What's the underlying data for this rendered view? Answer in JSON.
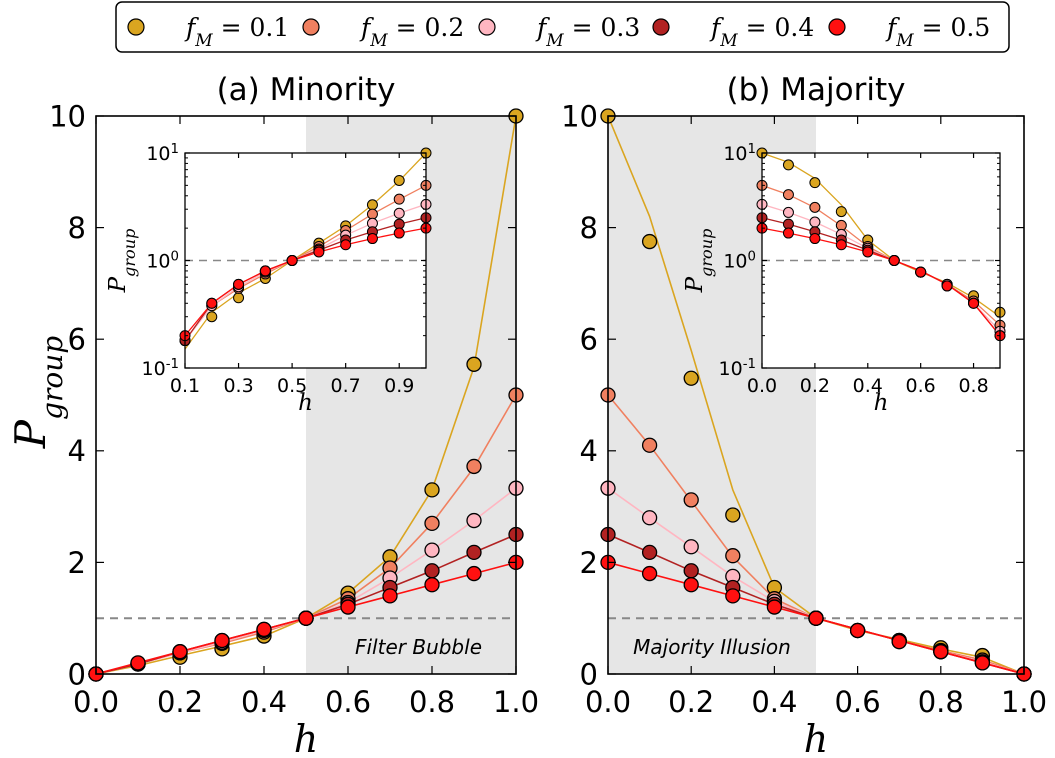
{
  "legend": {
    "location": "top-center, outside panels",
    "entries": [
      {
        "label": "f_M = 0.1",
        "color": "#DAA520"
      },
      {
        "label": "f_M = 0.2",
        "color": "#F08060"
      },
      {
        "label": "f_M = 0.3",
        "color": "#FFB6C1"
      },
      {
        "label": "f_M = 0.4",
        "color": "#B22222"
      },
      {
        "label": "f_M = 0.5",
        "color": "#FF1010"
      }
    ]
  },
  "shared_axes": {
    "xlabel": "h",
    "ylabel": "P_group"
  },
  "chart_data": [
    {
      "type": "line",
      "title": "(a) Minority",
      "xlabel": "h",
      "ylabel": "P_group",
      "xlim": [
        0.0,
        1.0
      ],
      "ylim": [
        0,
        10
      ],
      "xticks": [
        "0.0",
        "0.2",
        "0.4",
        "0.6",
        "0.8",
        "1.0"
      ],
      "yticks": [
        "0",
        "2",
        "4",
        "6",
        "8",
        "10"
      ],
      "reference_line_y": 1,
      "shaded_region": {
        "x": [
          0.5,
          1.0
        ],
        "label": "Filter Bubble"
      },
      "markers": true,
      "x": [
        0.0,
        0.1,
        0.2,
        0.3,
        0.4,
        0.5,
        0.6,
        0.7,
        0.8,
        0.9,
        1.0
      ],
      "series": [
        {
          "name": "f_M = 0.1",
          "line": [
            0,
            0.15,
            0.33,
            0.5,
            0.68,
            1.0,
            1.45,
            2.1,
            3.3,
            5.5,
            10.0
          ],
          "points": [
            0,
            0.18,
            0.3,
            0.45,
            0.68,
            1.0,
            1.45,
            2.1,
            3.3,
            5.55,
            10.0
          ]
        },
        {
          "name": "f_M = 0.2",
          "line": [
            0,
            0.18,
            0.38,
            0.55,
            0.75,
            1.0,
            1.35,
            1.9,
            2.7,
            3.7,
            5.0
          ],
          "points": [
            0,
            0.18,
            0.38,
            0.55,
            0.75,
            1.0,
            1.35,
            1.9,
            2.7,
            3.72,
            5.0
          ]
        },
        {
          "name": "f_M = 0.3",
          "line": [
            0,
            0.18,
            0.38,
            0.57,
            0.78,
            1.0,
            1.28,
            1.72,
            2.22,
            2.75,
            3.33
          ],
          "points": [
            0,
            0.18,
            0.38,
            0.57,
            0.78,
            1.0,
            1.28,
            1.72,
            2.22,
            2.75,
            3.33
          ]
        },
        {
          "name": "f_M = 0.4",
          "line": [
            0,
            0.18,
            0.4,
            0.6,
            0.8,
            1.0,
            1.25,
            1.55,
            1.85,
            2.18,
            2.5
          ],
          "points": [
            0,
            0.18,
            0.4,
            0.6,
            0.8,
            1.0,
            1.25,
            1.55,
            1.85,
            2.18,
            2.5
          ]
        },
        {
          "name": "f_M = 0.5",
          "line": [
            0,
            0.2,
            0.4,
            0.6,
            0.8,
            1.0,
            1.2,
            1.4,
            1.6,
            1.8,
            2.0
          ],
          "points": [
            0,
            0.2,
            0.4,
            0.6,
            0.8,
            1.0,
            1.2,
            1.4,
            1.6,
            1.8,
            2.0
          ]
        }
      ],
      "inset": {
        "type": "line",
        "yscale": "log",
        "xlabel": "h",
        "ylabel": "P_group",
        "xlim": [
          0.1,
          1.0
        ],
        "ylim": [
          0.1,
          10
        ],
        "xticks": [
          "0.1",
          "0.3",
          "0.5",
          "0.7",
          "0.9"
        ],
        "yticks": [
          "10^-1",
          "10^0",
          "10^1"
        ],
        "reference_line_y": 1,
        "markers": true,
        "x": [
          0.1,
          0.2,
          0.3,
          0.4,
          0.5,
          0.6,
          0.7,
          0.8,
          0.9,
          1.0
        ],
        "series": [
          {
            "name": "f_M = 0.1",
            "line": [
              0.15,
              0.33,
              0.5,
              0.68,
              1.0,
              1.45,
              2.1,
              3.3,
              5.5,
              10.0
            ],
            "points": [
              0.18,
              0.3,
              0.45,
              0.68,
              1.0,
              1.45,
              2.1,
              3.3,
              5.55,
              10.0
            ]
          },
          {
            "name": "f_M = 0.2",
            "line": [
              0.18,
              0.38,
              0.55,
              0.75,
              1.0,
              1.35,
              1.9,
              2.7,
              3.7,
              5.0
            ],
            "points": [
              0.18,
              0.38,
              0.55,
              0.75,
              1.0,
              1.35,
              1.9,
              2.7,
              3.72,
              5.0
            ]
          },
          {
            "name": "f_M = 0.3",
            "line": [
              0.18,
              0.38,
              0.57,
              0.78,
              1.0,
              1.28,
              1.72,
              2.22,
              2.75,
              3.33
            ],
            "points": [
              0.18,
              0.38,
              0.57,
              0.78,
              1.0,
              1.28,
              1.72,
              2.22,
              2.75,
              3.33
            ]
          },
          {
            "name": "f_M = 0.4",
            "line": [
              0.18,
              0.4,
              0.6,
              0.8,
              1.0,
              1.25,
              1.55,
              1.85,
              2.18,
              2.5
            ],
            "points": [
              0.18,
              0.4,
              0.6,
              0.8,
              1.0,
              1.25,
              1.55,
              1.85,
              2.18,
              2.5
            ]
          },
          {
            "name": "f_M = 0.5",
            "line": [
              0.2,
              0.4,
              0.6,
              0.8,
              1.0,
              1.2,
              1.4,
              1.6,
              1.8,
              2.0
            ],
            "points": [
              0.2,
              0.4,
              0.6,
              0.8,
              1.0,
              1.2,
              1.4,
              1.6,
              1.8,
              2.0
            ]
          }
        ]
      }
    },
    {
      "type": "line",
      "title": "(b) Majority",
      "xlabel": "h",
      "ylabel": "",
      "xlim": [
        0.0,
        1.0
      ],
      "ylim": [
        0,
        10
      ],
      "xticks": [
        "0.0",
        "0.2",
        "0.4",
        "0.6",
        "0.8",
        "1.0"
      ],
      "yticks": [
        "0",
        "2",
        "4",
        "6",
        "8",
        "10"
      ],
      "reference_line_y": 1,
      "shaded_region": {
        "x": [
          0.0,
          0.5
        ],
        "label": "Majority Illusion"
      },
      "markers": true,
      "x": [
        0.0,
        0.1,
        0.2,
        0.3,
        0.4,
        0.5,
        0.6,
        0.7,
        0.8,
        0.9,
        1.0
      ],
      "series": [
        {
          "name": "f_M = 0.1",
          "line": [
            10.0,
            8.2,
            5.8,
            3.3,
            1.55,
            1.0,
            0.78,
            0.62,
            0.45,
            0.3,
            0.0
          ],
          "points": [
            10.0,
            7.75,
            5.3,
            2.85,
            1.55,
            1.0,
            0.78,
            0.6,
            0.47,
            0.33,
            0.0
          ]
        },
        {
          "name": "f_M = 0.2",
          "line": [
            5.0,
            4.1,
            3.1,
            2.1,
            1.35,
            1.0,
            0.8,
            0.6,
            0.42,
            0.25,
            0.0
          ],
          "points": [
            5.0,
            4.1,
            3.12,
            2.12,
            1.35,
            1.0,
            0.78,
            0.6,
            0.42,
            0.25,
            0.0
          ]
        },
        {
          "name": "f_M = 0.3",
          "line": [
            3.33,
            2.8,
            2.28,
            1.75,
            1.3,
            1.0,
            0.8,
            0.6,
            0.4,
            0.22,
            0.0
          ],
          "points": [
            3.33,
            2.8,
            2.28,
            1.75,
            1.3,
            1.0,
            0.78,
            0.6,
            0.4,
            0.22,
            0.0
          ]
        },
        {
          "name": "f_M = 0.4",
          "line": [
            2.5,
            2.18,
            1.85,
            1.55,
            1.25,
            1.0,
            0.8,
            0.6,
            0.4,
            0.2,
            0.0
          ],
          "points": [
            2.5,
            2.18,
            1.85,
            1.55,
            1.25,
            1.0,
            0.78,
            0.58,
            0.4,
            0.2,
            0.0
          ]
        },
        {
          "name": "f_M = 0.5",
          "line": [
            2.0,
            1.8,
            1.6,
            1.4,
            1.2,
            1.0,
            0.8,
            0.6,
            0.4,
            0.2,
            0.0
          ],
          "points": [
            2.0,
            1.8,
            1.6,
            1.4,
            1.2,
            1.0,
            0.78,
            0.58,
            0.4,
            0.2,
            0.0
          ]
        }
      ],
      "inset": {
        "type": "line",
        "yscale": "log",
        "xlabel": "h",
        "ylabel": "P_group",
        "xlim": [
          0.0,
          0.9
        ],
        "ylim": [
          0.1,
          10
        ],
        "xticks": [
          "0.0",
          "0.2",
          "0.4",
          "0.6",
          "0.8"
        ],
        "yticks": [
          "10^-1",
          "10^0",
          "10^1"
        ],
        "reference_line_y": 1,
        "markers": true,
        "x": [
          0.0,
          0.1,
          0.2,
          0.3,
          0.4,
          0.5,
          0.6,
          0.7,
          0.8,
          0.9
        ],
        "series": [
          {
            "name": "f_M = 0.1",
            "line": [
              10.0,
              8.2,
              5.8,
              3.3,
              1.55,
              1.0,
              0.78,
              0.62,
              0.45,
              0.3
            ],
            "points": [
              10.0,
              7.75,
              5.3,
              2.85,
              1.55,
              1.0,
              0.78,
              0.6,
              0.47,
              0.33
            ]
          },
          {
            "name": "f_M = 0.2",
            "line": [
              5.0,
              4.1,
              3.1,
              2.1,
              1.35,
              1.0,
              0.8,
              0.6,
              0.42,
              0.25
            ],
            "points": [
              5.0,
              4.1,
              3.12,
              2.12,
              1.35,
              1.0,
              0.78,
              0.6,
              0.42,
              0.25
            ]
          },
          {
            "name": "f_M = 0.3",
            "line": [
              3.33,
              2.8,
              2.28,
              1.75,
              1.3,
              1.0,
              0.8,
              0.6,
              0.4,
              0.22
            ],
            "points": [
              3.33,
              2.8,
              2.28,
              1.75,
              1.3,
              1.0,
              0.78,
              0.6,
              0.4,
              0.22
            ]
          },
          {
            "name": "f_M = 0.4",
            "line": [
              2.5,
              2.18,
              1.85,
              1.55,
              1.25,
              1.0,
              0.8,
              0.6,
              0.4,
              0.2
            ],
            "points": [
              2.5,
              2.18,
              1.85,
              1.55,
              1.25,
              1.0,
              0.78,
              0.58,
              0.4,
              0.2
            ]
          },
          {
            "name": "f_M = 0.5",
            "line": [
              2.0,
              1.8,
              1.6,
              1.4,
              1.2,
              1.0,
              0.8,
              0.6,
              0.4,
              0.2
            ],
            "points": [
              2.0,
              1.8,
              1.6,
              1.4,
              1.2,
              1.0,
              0.78,
              0.58,
              0.4,
              0.2
            ]
          }
        ]
      }
    }
  ]
}
